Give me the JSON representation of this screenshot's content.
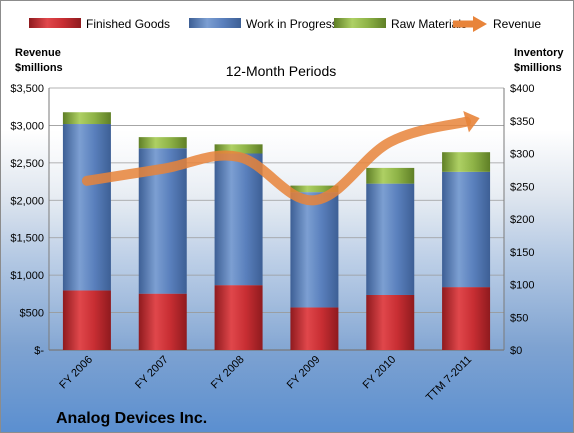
{
  "chart_data": {
    "type": "bar",
    "subtype": "stacked bar with line overlay",
    "subtitle": "12-Month Periods",
    "company": "Analog Devices Inc.",
    "categories": [
      "FY 2006",
      "FY 2007",
      "FY 2008",
      "FY 2009",
      "FY 2010",
      "TTM 7-2011"
    ],
    "left_axis": {
      "title_line1": "Revenue",
      "title_line2": "$millions",
      "range": [
        0,
        3500
      ],
      "ticks": [
        "$-",
        "$500",
        "$1,000",
        "$1,500",
        "$2,000",
        "$2,500",
        "$3,000",
        "$3,500"
      ]
    },
    "right_axis": {
      "title_line1": "Inventory",
      "title_line2": "$millions",
      "range": [
        0,
        400
      ],
      "ticks": [
        "$0",
        "$50",
        "$100",
        "$150",
        "$200",
        "$250",
        "$300",
        "$350",
        "$400"
      ]
    },
    "series": [
      {
        "name": "Finished Goods",
        "axis": "right",
        "color": "#c0282d",
        "values": [
          91,
          86,
          99,
          65,
          84,
          96
        ]
      },
      {
        "name": "Work in Progress",
        "axis": "right",
        "color": "#5a80bd",
        "values": [
          254,
          222,
          201,
          176,
          170,
          176
        ]
      },
      {
        "name": "Raw Materials",
        "axis": "right",
        "color": "#8eb347",
        "values": [
          18,
          17,
          14,
          10,
          24,
          30
        ]
      },
      {
        "name": "Revenue",
        "axis": "left",
        "type": "line",
        "color": "#e8843a",
        "values": [
          2260,
          2420,
          2580,
          2000,
          2780,
          3050
        ]
      }
    ],
    "grid": true,
    "legend_position": "top"
  }
}
